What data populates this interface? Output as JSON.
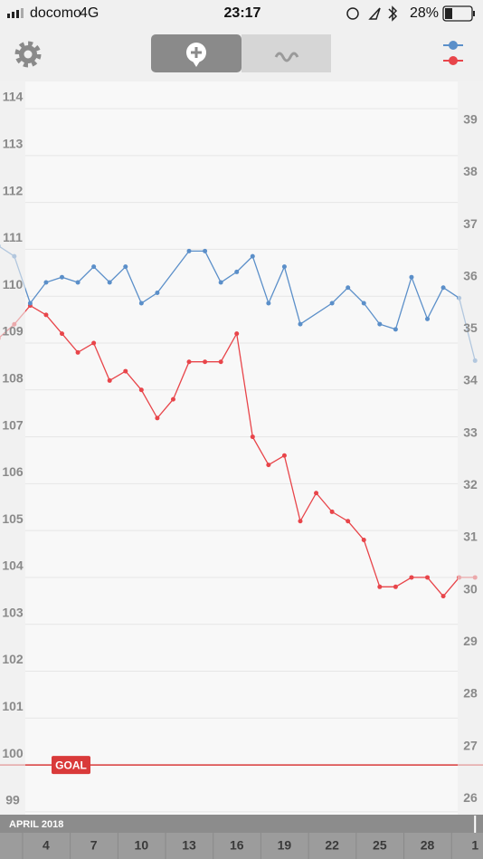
{
  "status_bar": {
    "carrier": "docomo",
    "network": "4G",
    "time": "23:17",
    "battery": "28%"
  },
  "chart_data": {
    "type": "line",
    "period_label": "APRIL 2018",
    "xlim": [
      1.1,
      31.5
    ],
    "xticks": [
      4,
      7,
      10,
      13,
      16,
      19,
      22,
      25,
      28,
      {
        "value": 31,
        "label": "1"
      }
    ],
    "ylim": [
      98.94,
      114.58
    ],
    "yticks": [
      99,
      100,
      101,
      102,
      103,
      104,
      105,
      106,
      107,
      108,
      109,
      110,
      111,
      112,
      113,
      114
    ],
    "y2lim": [
      25.9,
      39.95
    ],
    "y2ticks": [
      26,
      27,
      28,
      29,
      30,
      31,
      32,
      33,
      34,
      35,
      36,
      37,
      38,
      39
    ],
    "grid": true,
    "goal": 100,
    "goal_label": "GOAL",
    "series": [
      {
        "color": "#e8454a",
        "x": [
          1,
          2,
          3,
          4,
          5,
          6,
          7,
          8,
          9,
          10,
          11,
          12,
          13,
          14,
          15,
          16,
          17,
          18,
          19,
          20,
          21,
          22,
          23,
          24,
          25,
          26,
          27,
          28,
          29,
          30,
          31
        ],
        "values": [
          109.1,
          109.4,
          109.8,
          109.6,
          109.2,
          108.8,
          109.0,
          108.2,
          108.4,
          108.0,
          107.4,
          107.8,
          108.6,
          108.6,
          108.6,
          109.2,
          107.0,
          106.4,
          106.6,
          105.2,
          105.8,
          105.4,
          105.2,
          104.8,
          103.8,
          103.8,
          104.0,
          104.0,
          103.6,
          104.0,
          104.0
        ]
      },
      {
        "color": "#5b8fc9",
        "axis": "y2",
        "x": [
          1,
          2,
          3,
          4,
          5,
          6,
          7,
          8,
          9,
          10,
          11,
          13,
          14,
          15,
          16,
          17,
          18,
          19,
          20,
          22,
          23,
          24,
          25,
          26,
          27,
          28,
          29,
          30,
          31
        ],
        "values": [
          36.8,
          36.6,
          35.7,
          36.1,
          36.2,
          36.1,
          36.4,
          36.1,
          36.4,
          35.7,
          35.9,
          36.7,
          36.7,
          36.1,
          36.3,
          36.6,
          35.7,
          36.4,
          35.3,
          35.7,
          36.0,
          35.7,
          35.3,
          35.2,
          36.2,
          35.4,
          36.0,
          35.8,
          34.6
        ]
      }
    ]
  }
}
